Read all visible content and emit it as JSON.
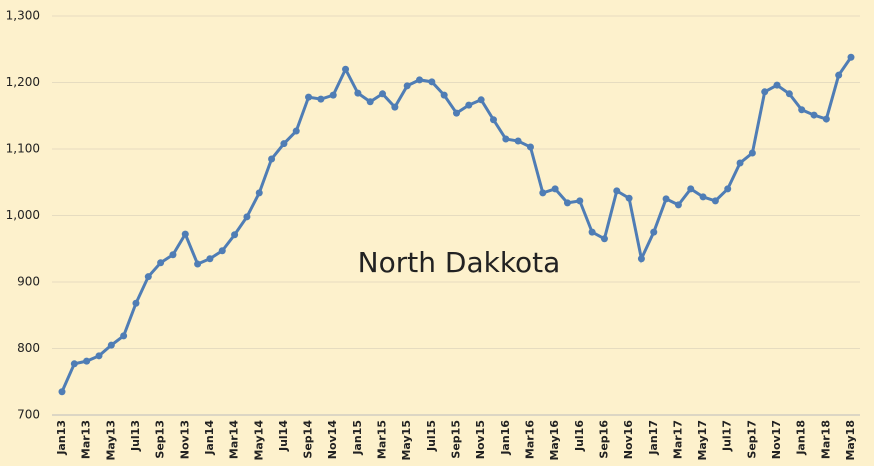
{
  "chart_data": {
    "type": "line",
    "title": "North Dakkota",
    "categories": [
      "Jan13",
      null,
      "Mar13",
      null,
      "May13",
      null,
      "Jul13",
      null,
      "Sep13",
      null,
      "Nov13",
      null,
      "Jan14",
      null,
      "Mar14",
      null,
      "May14",
      null,
      "Jul14",
      null,
      "Sep14",
      null,
      "Nov14",
      null,
      "Jan15",
      null,
      "Mar15",
      null,
      "May15",
      null,
      "Jul15",
      null,
      "Sep15",
      null,
      "Nov15",
      null,
      "Jan16",
      null,
      "Mar16",
      null,
      "May16",
      null,
      "Jul16",
      null,
      "Sep16",
      null,
      "Nov16",
      null,
      "Jan17",
      null,
      "Mar17",
      null,
      "May17",
      null,
      "Jul17",
      null,
      "Sep17",
      null,
      "Nov17",
      null,
      "Jan18",
      null,
      "Mar18",
      null,
      "May18"
    ],
    "series": [
      {
        "color": "#4f7db5",
        "values": [
          735,
          777,
          781,
          789,
          805,
          819,
          868,
          908,
          929,
          941,
          972,
          927,
          935,
          947,
          971,
          998,
          1034,
          1085,
          1108,
          1127,
          1178,
          1175,
          1181,
          1220,
          1184,
          1171,
          1183,
          1163,
          1195,
          1204,
          1201,
          1181,
          1154,
          1166,
          1174,
          1144,
          1115,
          1112,
          1103,
          1034,
          1040,
          1019,
          1022,
          975,
          965,
          1037,
          1026,
          935,
          975,
          1025,
          1016,
          1040,
          1028,
          1022,
          1040,
          1079,
          1094,
          1186,
          1196,
          1183,
          1159,
          1151,
          1145,
          1211,
          1238
        ]
      }
    ],
    "ylim": [
      700,
      1300
    ],
    "yticks": [
      700,
      800,
      900,
      {
        "value": 1000,
        "label": "1,000"
      },
      {
        "value": 1100,
        "label": "1,100"
      },
      {
        "value": 1200,
        "label": "1,200"
      },
      {
        "value": 1300,
        "label": "1,300"
      }
    ],
    "grid": true
  }
}
